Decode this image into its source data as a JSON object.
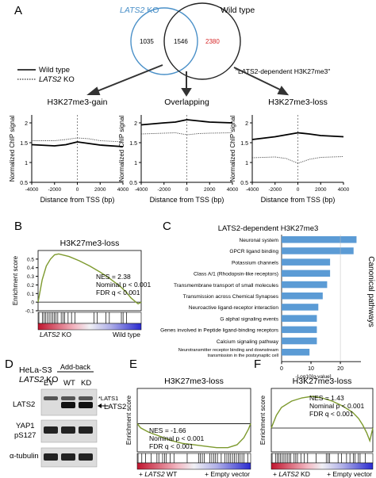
{
  "panel_labels": {
    "A": "A",
    "B": "B",
    "C": "C",
    "D": "D",
    "E": "E",
    "F": "F"
  },
  "panel_a": {
    "venn": {
      "left_label_italic": "LATS2",
      "left_label_rest": " KO",
      "right_label": "Wild type",
      "left_only": "1035",
      "overlap": "1546",
      "right_only": "2380",
      "right_only_color": "#d62728",
      "left_circle_color": "#4a90c8",
      "callout": "\"LATS2-dependent H3K27me3\""
    },
    "legend": {
      "wild_type": "Wild type",
      "ko_italic": "LATS2",
      "ko_rest": " KO"
    },
    "ylabel_line1": "Normalized ChIP signal",
    "xlabel": "Distance from TSS (bp)",
    "yticks": [
      "2",
      "1.5",
      "1",
      "0.5"
    ],
    "xticks": [
      "-4000",
      "-2000",
      "0",
      "2000",
      "4000"
    ]
  },
  "chart_data": [
    {
      "type": "line",
      "title": "H3K27me3-gain",
      "xlabel": "Distance from TSS (bp)",
      "ylabel": "Normalized ChIP signal",
      "xlim": [
        -4000,
        4000
      ],
      "ylim": [
        0.5,
        2.2
      ],
      "series": [
        {
          "name": "Wild type",
          "x": [
            -4000,
            -2000,
            -1000,
            0,
            1000,
            2000,
            4000
          ],
          "y": [
            1.45,
            1.42,
            1.45,
            1.52,
            1.48,
            1.44,
            1.4
          ]
        },
        {
          "name": "LATS2 KO",
          "x": [
            -4000,
            -2000,
            -1000,
            0,
            1000,
            2000,
            4000
          ],
          "y": [
            1.55,
            1.55,
            1.58,
            1.62,
            1.6,
            1.55,
            1.52
          ]
        }
      ]
    },
    {
      "type": "line",
      "title": "Overlapping",
      "xlabel": "Distance from TSS (bp)",
      "ylabel": "Normalized ChIP signal",
      "xlim": [
        -4000,
        4000
      ],
      "ylim": [
        0.5,
        2.2
      ],
      "series": [
        {
          "name": "Wild type",
          "x": [
            -4000,
            -2000,
            -1000,
            0,
            1000,
            2000,
            4000
          ],
          "y": [
            1.95,
            2.0,
            2.02,
            2.08,
            2.05,
            2.02,
            2.0
          ]
        },
        {
          "name": "LATS2 KO",
          "x": [
            -4000,
            -2000,
            -1000,
            0,
            1000,
            2000,
            4000
          ],
          "y": [
            1.72,
            1.74,
            1.75,
            1.7,
            1.73,
            1.74,
            1.75
          ]
        }
      ]
    },
    {
      "type": "line",
      "title": "H3K27me3-loss",
      "xlabel": "Distance from TSS (bp)",
      "ylabel": "Normalized ChIP signal",
      "xlim": [
        -4000,
        4000
      ],
      "ylim": [
        0.5,
        2.2
      ],
      "series": [
        {
          "name": "Wild type",
          "x": [
            -4000,
            -2000,
            -1000,
            0,
            1000,
            2000,
            4000
          ],
          "y": [
            1.58,
            1.65,
            1.7,
            1.75,
            1.72,
            1.68,
            1.65
          ]
        },
        {
          "name": "LATS2 KO",
          "x": [
            -4000,
            -2000,
            -1000,
            0,
            1000,
            2000,
            4000
          ],
          "y": [
            1.12,
            1.14,
            1.1,
            0.98,
            1.08,
            1.13,
            1.15
          ]
        }
      ]
    },
    {
      "type": "line",
      "title": "H3K27me3-loss",
      "ylabel": "Enrichment score",
      "ylim": [
        -0.1,
        0.6
      ],
      "x": [
        0,
        0.04,
        0.08,
        0.12,
        0.16,
        0.2,
        0.3,
        0.4,
        0.5,
        0.6,
        0.7,
        0.8,
        0.86,
        0.9,
        0.94,
        0.97,
        1.0
      ],
      "y": [
        0,
        0.26,
        0.42,
        0.5,
        0.55,
        0.56,
        0.53,
        0.48,
        0.42,
        0.35,
        0.27,
        0.18,
        0.11,
        0.05,
        0.01,
        -0.02,
        0
      ],
      "annotations": [
        "NES = 2.38",
        "Nominal p < 0.001",
        "FDR q < 0.001"
      ],
      "yticks": [
        "0.5",
        "0.4",
        "0.3",
        "0.2",
        "0.1",
        "0",
        "-0.1"
      ],
      "bottom_left_italic": "LATS2",
      "bottom_left_rest": " KO",
      "bottom_right": "Wild type"
    },
    {
      "type": "bar",
      "title": "LATS2-dependent H3K27me3",
      "xlabel": "-Log10[q-value]",
      "side_label": "Canonical pathways",
      "xlim": [
        0,
        27
      ],
      "xticks": [
        "0",
        "10",
        "20"
      ],
      "bar_color": "#5b9bd5",
      "categories": [
        "Neuronal system",
        "GPCR ligand binding",
        "Potassium channels",
        "Class A/1 (Rhodopsin-like receptors)",
        "Transmembrane transport of small molecules",
        "Transmission across Chemical Synapses",
        "Neuroactive ligand-receptor interaction",
        "G alphal signaling events",
        "Genes involved in Peptide ligand-binding receptors",
        "Calcium signaling pathway",
        "Neurotransmitter receptor binding and downstream\ntransmission in the postsynaptic cell"
      ],
      "values": [
        25.5,
        24.5,
        16.5,
        16.5,
        15.5,
        14,
        12.5,
        12,
        12,
        12,
        9.5
      ]
    },
    {
      "type": "line",
      "title": "H3K27me3-loss",
      "ylabel": "Enrichment score",
      "ylim": [
        -0.2,
        0.25
      ],
      "x": [
        0,
        0.03,
        0.1,
        0.2,
        0.3,
        0.4,
        0.5,
        0.6,
        0.7,
        0.8,
        0.88,
        0.94,
        0.98,
        1.0
      ],
      "y": [
        0,
        -0.03,
        -0.06,
        -0.09,
        -0.12,
        -0.14,
        -0.15,
        -0.16,
        -0.17,
        -0.17,
        -0.15,
        -0.1,
        -0.04,
        0
      ],
      "annotations": [
        "NES = -1.66",
        "Nominal p < 0.001",
        "FDR q < 0.001"
      ],
      "bottom_left_italic": "LATS2",
      "bottom_left_prefix": "+ ",
      "bottom_left_rest": " WT",
      "bottom_right": "+ Empty vector"
    },
    {
      "type": "line",
      "title": "H3K27me3-loss",
      "ylabel": "Enrichment score",
      "ylim": [
        -0.15,
        0.25
      ],
      "x": [
        0,
        0.05,
        0.1,
        0.2,
        0.3,
        0.4,
        0.5,
        0.6,
        0.7,
        0.8,
        0.86,
        0.9,
        0.94,
        0.97,
        1.0
      ],
      "y": [
        0,
        0.08,
        0.13,
        0.17,
        0.19,
        0.2,
        0.19,
        0.17,
        0.14,
        0.1,
        0.06,
        0.02,
        -0.03,
        -0.08,
        0
      ],
      "annotations": [
        "NES = 1.43",
        "Nominal p < 0.001",
        "FDR q < 0.001"
      ],
      "bottom_left_italic": "LATS2",
      "bottom_left_prefix": "+ ",
      "bottom_left_rest": " KD",
      "bottom_right": "+ Empty vector"
    }
  ],
  "panel_d": {
    "cell_line": "HeLa-S3",
    "ko_italic": "LATS2",
    "ko_rest": " KO",
    "add_back": "Add-back",
    "lanes": [
      "EV",
      "WT",
      "KD"
    ],
    "rows": [
      "LATS2",
      "YAP1",
      "pS127",
      "α-tubulin"
    ],
    "lats1_marker": "*LATS1",
    "lats2_marker": "LATS2"
  },
  "colors": {
    "es_line": "#7d9a2e",
    "wt_line": "#000000",
    "ko_line": "#444444"
  }
}
